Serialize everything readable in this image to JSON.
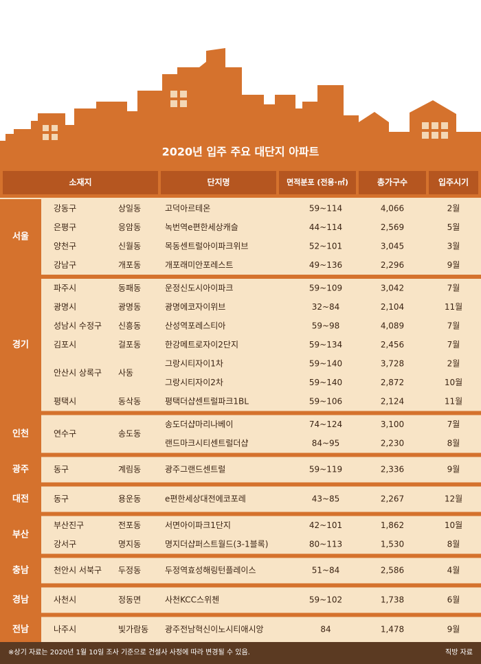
{
  "title": "2020년 입주 주요 대단지 아파트",
  "header": {
    "location": "소재지",
    "name": "단지명",
    "area": "면적분포 (전용·㎡)",
    "units": "총가구수",
    "move_in": "입주시기"
  },
  "groups": [
    {
      "region": "서울",
      "rows": [
        {
          "district": "강동구",
          "dong": "상일동",
          "complexes": [
            {
              "name": "고덕아르테온",
              "area": "59~114",
              "units": "4,066",
              "month": "2월"
            }
          ]
        },
        {
          "district": "은평구",
          "dong": "응암동",
          "complexes": [
            {
              "name": "녹번역e편한세상캐슬",
              "area": "44~114",
              "units": "2,569",
              "month": "5월"
            }
          ]
        },
        {
          "district": "양천구",
          "dong": "신월동",
          "complexes": [
            {
              "name": "목동센트럴아이파크위브",
              "area": "52~101",
              "units": "3,045",
              "month": "3월"
            }
          ]
        },
        {
          "district": "강남구",
          "dong": "개포동",
          "complexes": [
            {
              "name": "개포래미안포레스트",
              "area": "49~136",
              "units": "2,296",
              "month": "9월"
            }
          ]
        }
      ]
    },
    {
      "region": "경기",
      "rows": [
        {
          "district": "파주시",
          "dong": "동패동",
          "complexes": [
            {
              "name": "운정신도시아이파크",
              "area": "59~109",
              "units": "3,042",
              "month": "7월"
            }
          ]
        },
        {
          "district": "광명시",
          "dong": "광명동",
          "complexes": [
            {
              "name": "광명에코자이위브",
              "area": "32~84",
              "units": "2,104",
              "month": "11월"
            }
          ]
        },
        {
          "district": "성남시 수정구",
          "dong": "신흥동",
          "complexes": [
            {
              "name": "산성역포레스티아",
              "area": "59~98",
              "units": "4,089",
              "month": "7월"
            }
          ]
        },
        {
          "district": "김포시",
          "dong": "걸포동",
          "complexes": [
            {
              "name": "한강메트로자이2단지",
              "area": "59~134",
              "units": "2,456",
              "month": "7월"
            }
          ]
        },
        {
          "district": "안산시 상록구",
          "dong": "사동",
          "complexes": [
            {
              "name": "그랑시티자이1차",
              "area": "59~140",
              "units": "3,728",
              "month": "2월"
            },
            {
              "name": "그랑시티자이2차",
              "area": "59~140",
              "units": "2,872",
              "month": "10월"
            }
          ]
        },
        {
          "district": "평택시",
          "dong": "동삭동",
          "complexes": [
            {
              "name": "평택더샵센트럴파크1BL",
              "area": "59~106",
              "units": "2,124",
              "month": "11월"
            }
          ]
        }
      ]
    },
    {
      "region": "인천",
      "rows": [
        {
          "district": "연수구",
          "dong": "송도동",
          "complexes": [
            {
              "name": "송도더샵마리나베이",
              "area": "74~124",
              "units": "3,100",
              "month": "7월"
            },
            {
              "name": "랜드마크시티센트럴더샵",
              "area": "84~95",
              "units": "2,230",
              "month": "8월"
            }
          ]
        }
      ]
    },
    {
      "region": "광주",
      "rows": [
        {
          "district": "동구",
          "dong": "계림동",
          "complexes": [
            {
              "name": "광주그랜드센트럴",
              "area": "59~119",
              "units": "2,336",
              "month": "9월"
            }
          ]
        }
      ]
    },
    {
      "region": "대전",
      "rows": [
        {
          "district": "동구",
          "dong": "용운동",
          "complexes": [
            {
              "name": "e편한세상대전에코포레",
              "area": "43~85",
              "units": "2,267",
              "month": "12월"
            }
          ]
        }
      ]
    },
    {
      "region": "부산",
      "rows": [
        {
          "district": "부산진구",
          "dong": "전포동",
          "complexes": [
            {
              "name": "서면아이파크1단지",
              "area": "42~101",
              "units": "1,862",
              "month": "10월"
            }
          ]
        },
        {
          "district": "강서구",
          "dong": "명지동",
          "complexes": [
            {
              "name": "명지더샵퍼스트월드(3-1블록)",
              "area": "80~113",
              "units": "1,530",
              "month": "8월"
            }
          ]
        }
      ]
    },
    {
      "region": "충남",
      "rows": [
        {
          "district": "천안시 서북구",
          "dong": "두정동",
          "complexes": [
            {
              "name": "두정역효성해링턴플레이스",
              "area": "51~84",
              "units": "2,586",
              "month": "4월"
            }
          ]
        }
      ]
    },
    {
      "region": "경남",
      "rows": [
        {
          "district": "사천시",
          "dong": "정동면",
          "complexes": [
            {
              "name": "사천KCC스위첸",
              "area": "59~102",
              "units": "1,738",
              "month": "6월"
            }
          ]
        }
      ]
    },
    {
      "region": "전남",
      "rows": [
        {
          "district": "나주시",
          "dong": "빛가람동",
          "complexes": [
            {
              "name": "광주전남혁신이노시티애시앙",
              "area": "84",
              "units": "1,478",
              "month": "9월"
            }
          ]
        }
      ]
    }
  ],
  "footer": {
    "note": "※상기 자료는 2020년 1월 10일 조사 기준으로 건설사 사정에 따라 변경될 수 있음.",
    "source": "직방 자료"
  }
}
